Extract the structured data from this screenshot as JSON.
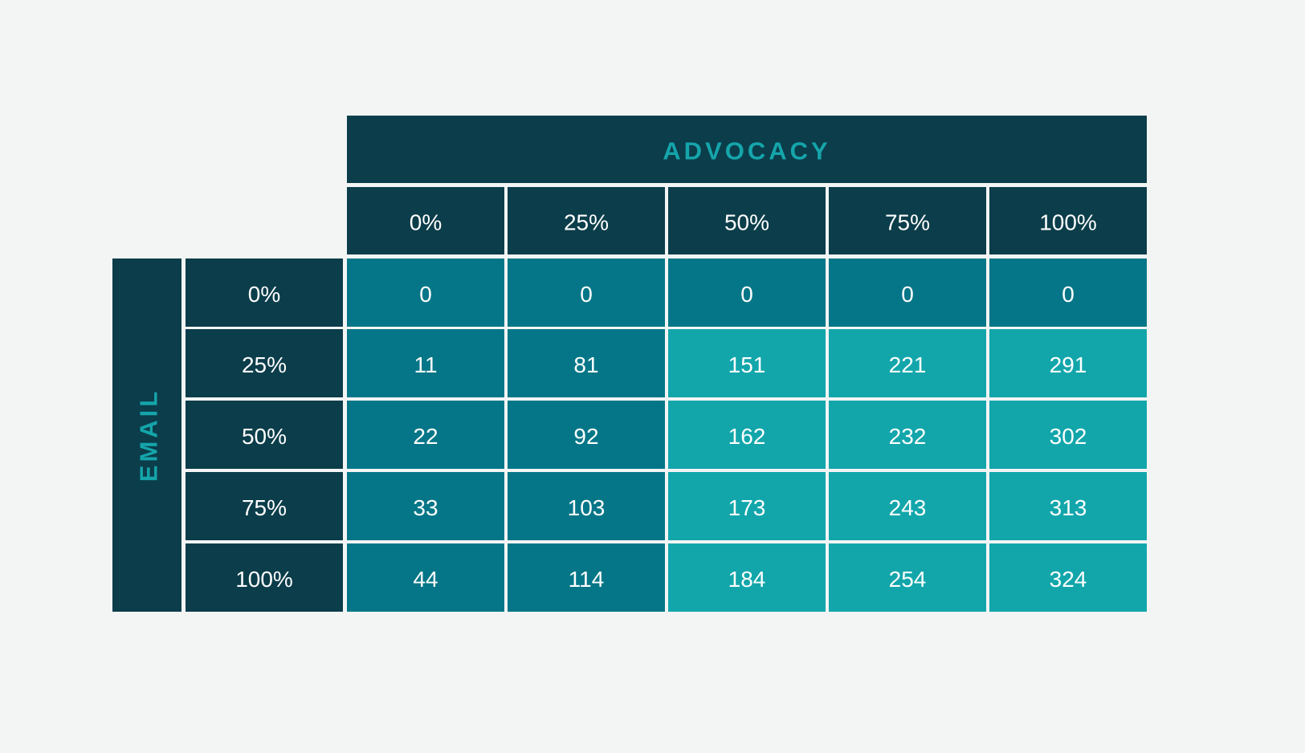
{
  "chart_data": {
    "type": "heatmap",
    "col_axis_title": "ADVOCACY",
    "row_axis_title": "EMAIL",
    "columns": [
      "0%",
      "25%",
      "50%",
      "75%",
      "100%"
    ],
    "rows": [
      "0%",
      "25%",
      "50%",
      "75%",
      "100%"
    ],
    "values": [
      [
        0,
        0,
        0,
        0,
        0
      ],
      [
        11,
        81,
        151,
        221,
        291
      ],
      [
        22,
        92,
        162,
        232,
        302
      ],
      [
        33,
        103,
        173,
        243,
        313
      ],
      [
        44,
        114,
        184,
        254,
        324
      ]
    ],
    "color_threshold": 150
  },
  "colors": {
    "background": "#f3f5f5",
    "header_dark": "#0b3d4a",
    "axis_title": "#15a5ab",
    "cell_low": "#057687",
    "cell_high": "#12a6ab",
    "grid_line": "#ffffff"
  }
}
